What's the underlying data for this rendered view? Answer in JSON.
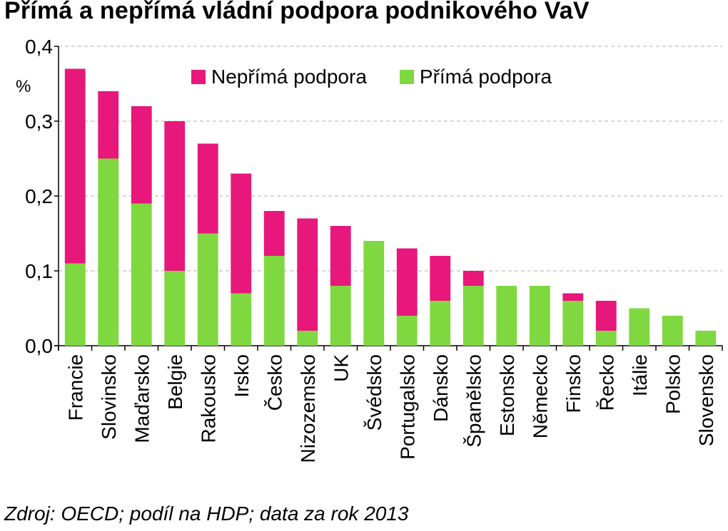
{
  "chart_data": {
    "type": "bar",
    "stacked": true,
    "title": "Přímá a nepřímá vládní podpora podnikového VaV",
    "ylabel": "%",
    "xlabel": "",
    "ylim": [
      0,
      0.4
    ],
    "yticks": [
      "0,0",
      "0,1",
      "0,2",
      "0,3",
      "0,4"
    ],
    "ytick_values": [
      0,
      0.1,
      0.2,
      0.3,
      0.4
    ],
    "grid": true,
    "legend_position": "top",
    "categories": [
      "Francie",
      "Slovinsko",
      "Maďarsko",
      "Belgie",
      "Rakousko",
      "Irsko",
      "Česko",
      "Nizozemsko",
      "UK",
      "Švédsko",
      "Portugalsko",
      "Dánsko",
      "Španělsko",
      "Estonsko",
      "Německo",
      "Finsko",
      "Řecko",
      "Itálie",
      "Polsko",
      "Slovensko"
    ],
    "series": [
      {
        "name": "Přímá podpora",
        "color": "#7fd83f",
        "values": [
          0.11,
          0.25,
          0.19,
          0.1,
          0.15,
          0.07,
          0.12,
          0.02,
          0.08,
          0.14,
          0.04,
          0.06,
          0.08,
          0.08,
          0.08,
          0.06,
          0.02,
          0.05,
          0.04,
          0.02
        ]
      },
      {
        "name": "Nepřímá podpora",
        "color": "#e8177b",
        "values": [
          0.26,
          0.09,
          0.13,
          0.2,
          0.12,
          0.16,
          0.06,
          0.15,
          0.08,
          0.0,
          0.09,
          0.06,
          0.02,
          0.0,
          0.0,
          0.01,
          0.04,
          0.0,
          0.0,
          0.0
        ]
      }
    ],
    "note": "Zdroj: OECD; podíl na HDP; data za rok 2013"
  }
}
